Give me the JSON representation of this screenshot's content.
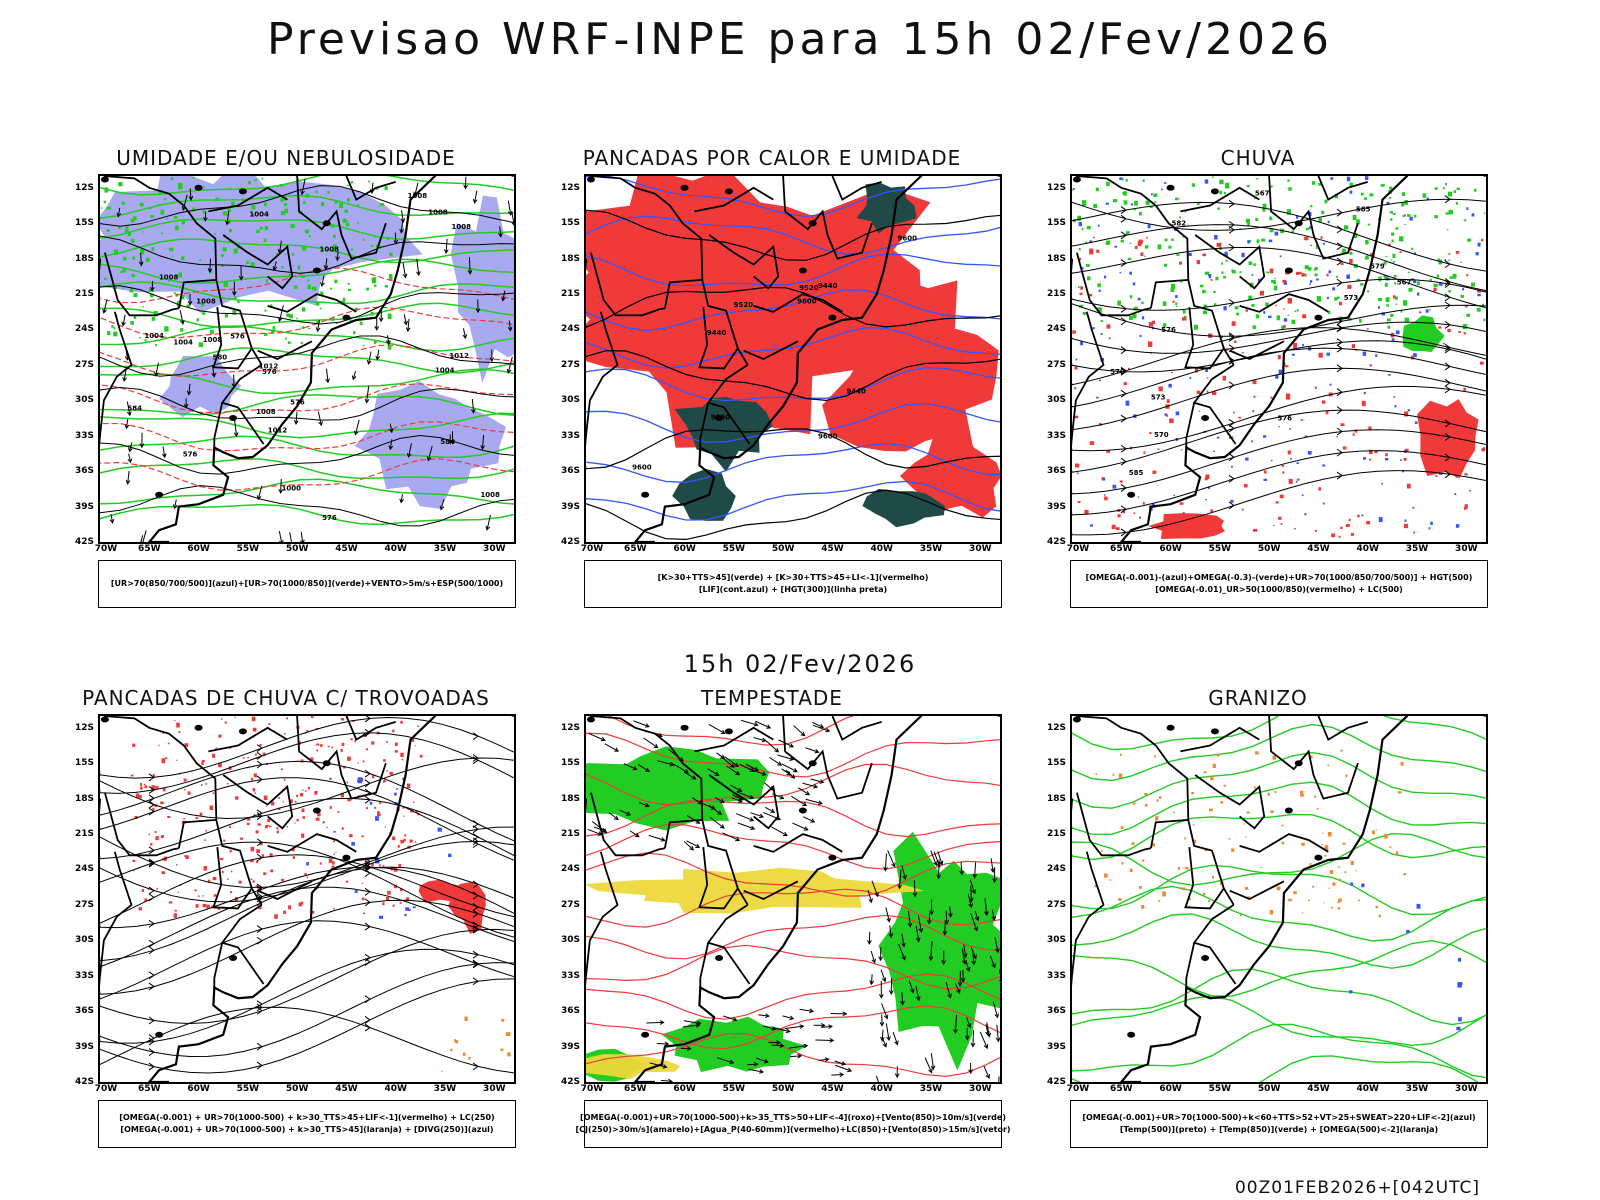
{
  "title": "Previsao WRF-INPE  para 15h 02/Fev/2026",
  "mid_title": "15h 02/Fev/2026",
  "footer": "00Z01FEB2026+[042UTC]",
  "lat_ticks": [
    "12S",
    "15S",
    "18S",
    "21S",
    "24S",
    "27S",
    "30S",
    "33S",
    "36S",
    "39S",
    "42S"
  ],
  "lon_ticks": [
    "70W",
    "65W",
    "60W",
    "55W",
    "50W",
    "45W",
    "40W",
    "35W",
    "30W"
  ],
  "colors": {
    "blue_fill": "#a9a9f0",
    "red_fill": "#f03a3a",
    "dark_teal": "#1f4a47",
    "green": "#22cc22",
    "yellow": "#ecd83a",
    "orange": "#ee8833",
    "blue_line": "#3355ff",
    "red_line": "#ee3b3b"
  },
  "panels": [
    {
      "id": "p1",
      "title": "UMIDADE E/OU NEBULOSIDADE",
      "legend": [
        "[UR>70(850/700/500)](azul)+[UR>70(1000/850)](verde)+VENTO>5m/s+ESP(500/1000)"
      ],
      "contour_labels": [
        "1008",
        "1008",
        "1012",
        "1008",
        "1008",
        "1004",
        "1008",
        "1008",
        "1004",
        "1004",
        "1012",
        "1008",
        "1008",
        "1008",
        "1004",
        "1000",
        "1012",
        "576",
        "576",
        "576",
        "576",
        "576",
        "584",
        "584",
        "580"
      ]
    },
    {
      "id": "p2",
      "title": "PANCADAS POR CALOR E UMIDADE",
      "legend": [
        "[K>30+TTS>45](verde) + [K>30+TTS>45+LI<-1](vermelho)",
        "[LIF](cont.azul) + [HGT(300)](linha preta)"
      ],
      "contour_labels": [
        "9600",
        "9520",
        "9440",
        "9600",
        "9600",
        "9520",
        "9600",
        "9440",
        "9440",
        "9360"
      ]
    },
    {
      "id": "p3",
      "title": "CHUVA",
      "legend": [
        "[OMEGA(-0.001)-(azul)+OMEGA(-0.3)-(verde)+UR>70(1000/850/700/500)] + HGT(500)",
        "[OMEGA(-0.01)_UR>50(1000/850)(vermelho) + LC(500)"
      ],
      "contour_labels": [
        "585",
        "585",
        "582",
        "579",
        "576",
        "576",
        "573",
        "570",
        "567",
        "573",
        "570",
        "567"
      ]
    },
    {
      "id": "p4",
      "title": "PANCADAS DE CHUVA C/ TROVOADAS",
      "legend": [
        "[OMEGA(-0.001) + UR>70(1000-500) + k>30_TTS>45+LIF<-1](vermelho) + LC(250)",
        "[OMEGA(-0.001) + UR>70(1000-500) + k>30_TTS>45](laranja) + [DIVG(250)](azul)"
      ],
      "contour_labels": []
    },
    {
      "id": "p5",
      "title": "TEMPESTADE",
      "legend": [
        "[OMEGA(-0.001)+UR>70(1000-500)+k>35_TTS>50+LIF<-4](roxo)+[Vento(850)>10m/s](verde)",
        "[CJ(250)>30m/s](amarelo)+[Agua_P(40-60mm)](vermelho)+LC(850)+[Vento(850)>15m/s](vetor)"
      ],
      "contour_labels": []
    },
    {
      "id": "p6",
      "title": "GRANIZO",
      "legend": [
        "[OMEGA(-0.001)+UR>70(1000-500)+k<60+TTS>52+VT>25+SWEAT>220+LIF<-2](azul)",
        "[Temp(500)](preto) + [Temp(850)](verde) + [OMEGA(500)<-2](laranja)"
      ],
      "contour_labels": []
    }
  ]
}
